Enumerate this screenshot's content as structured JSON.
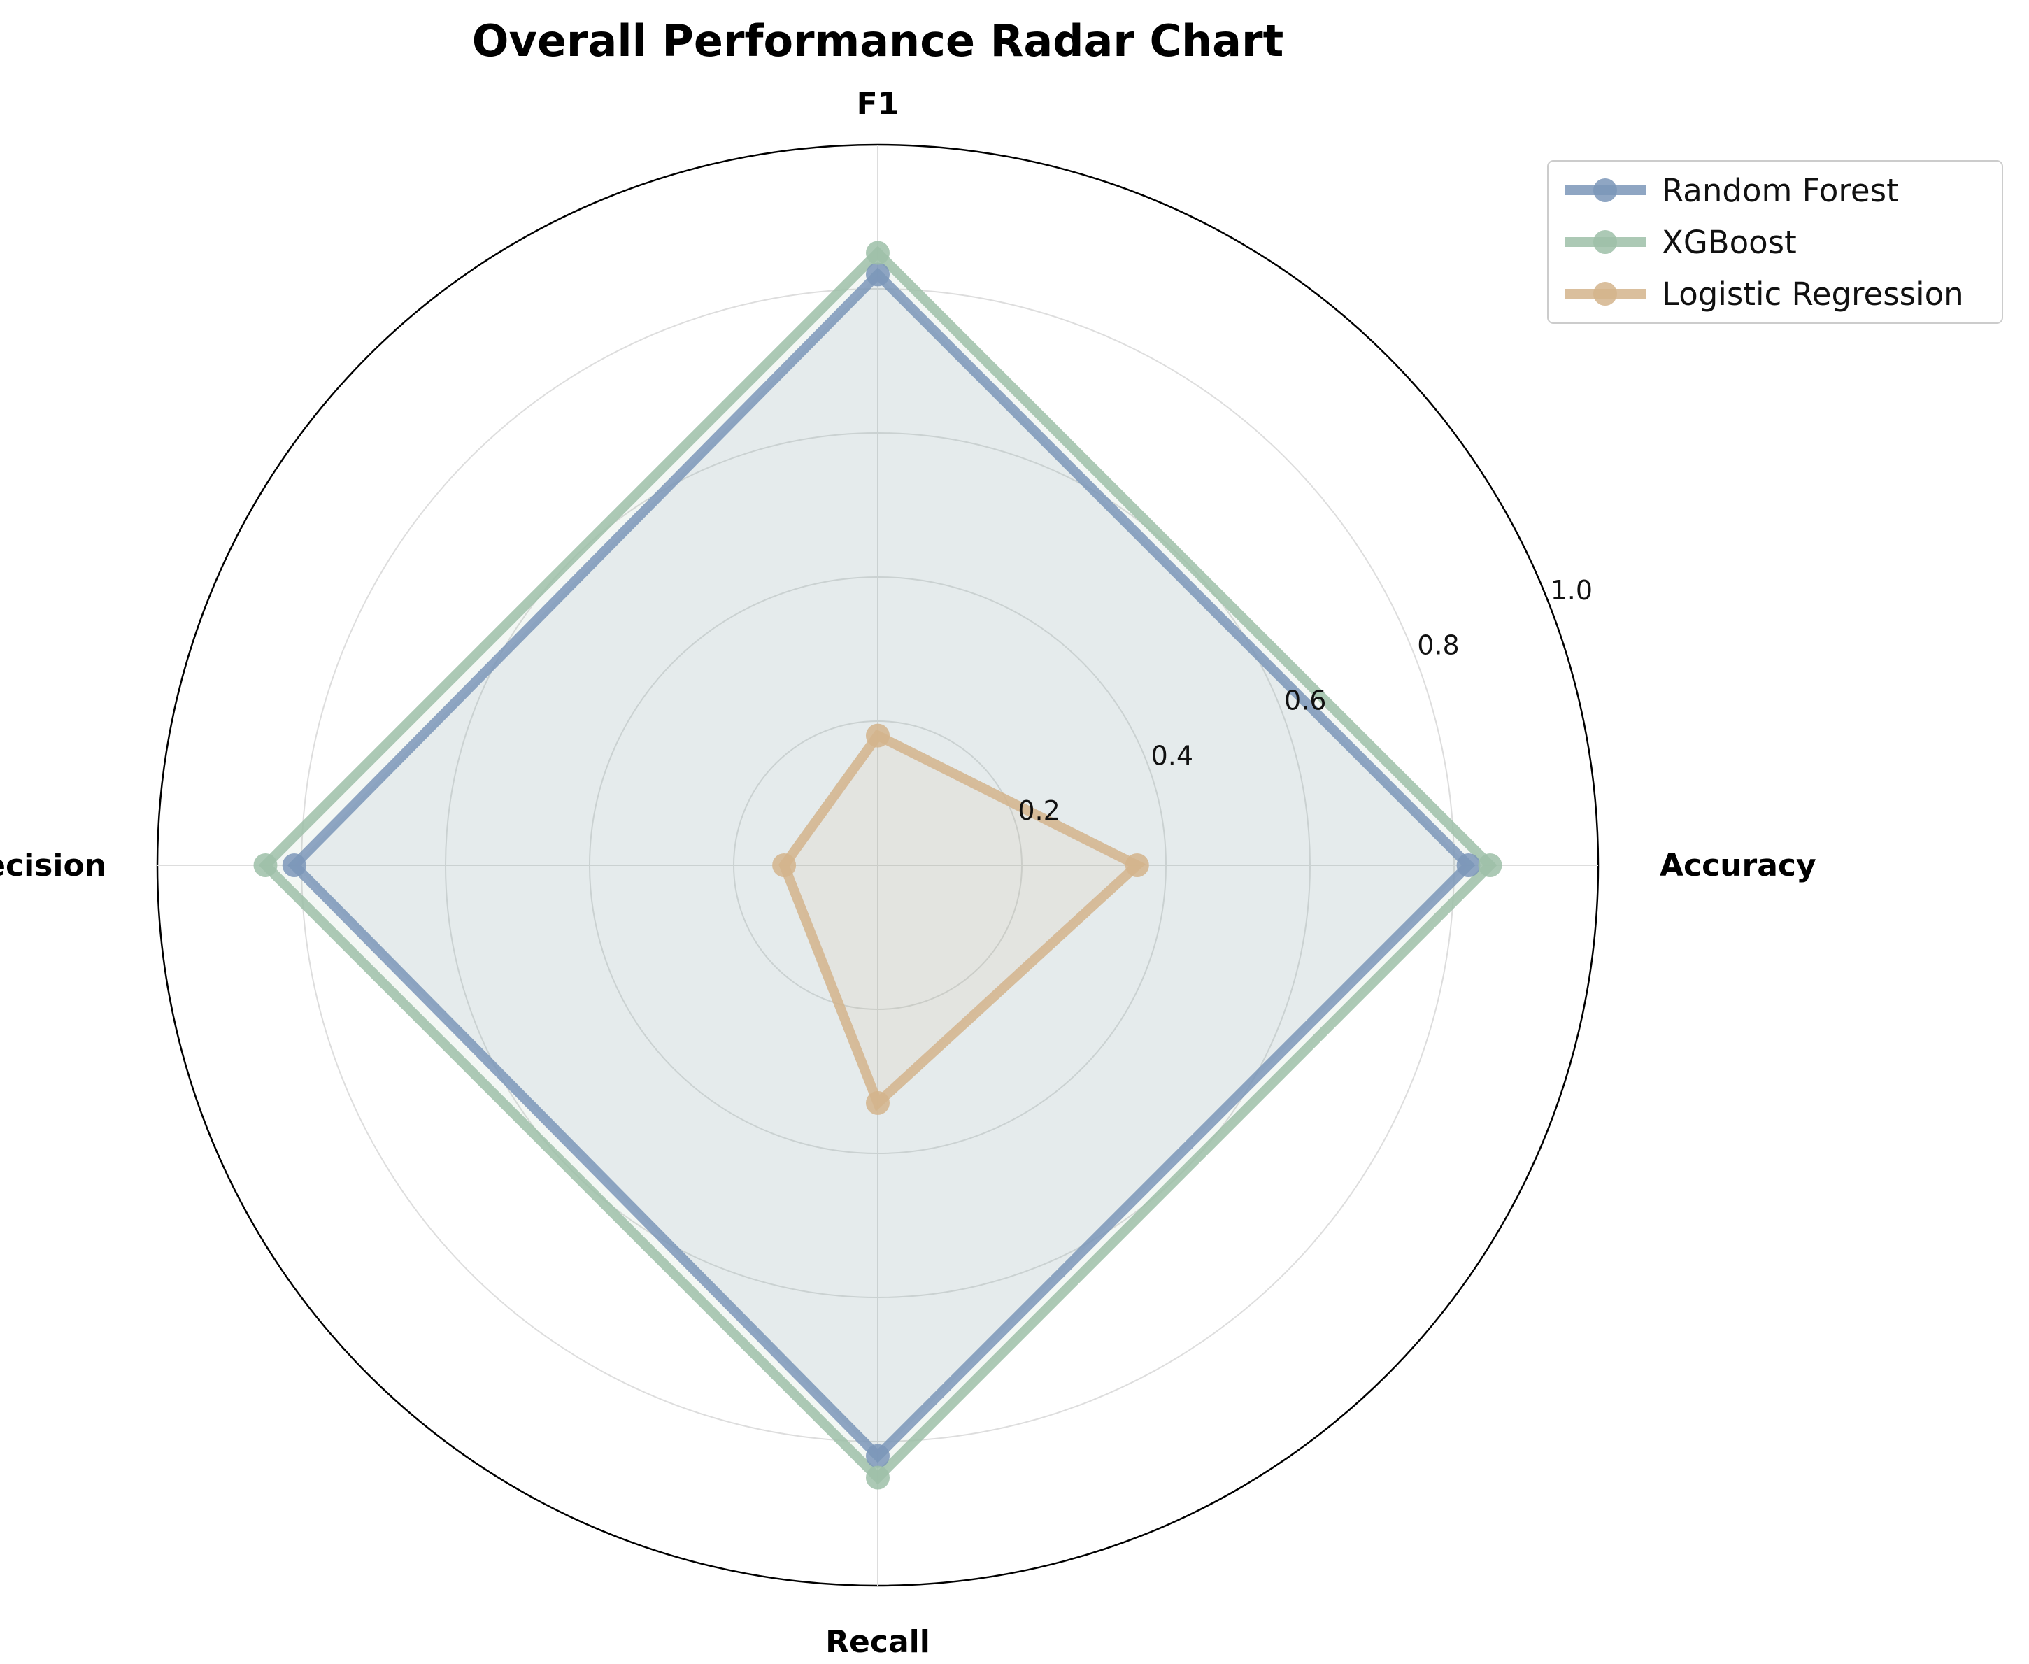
{
  "chart_data": {
    "type": "radar",
    "title": "Overall Performance Radar Chart",
    "axes": [
      "Accuracy",
      "F1",
      "Precision",
      "Recall"
    ],
    "rlim": [
      0,
      1.0
    ],
    "rticks": [
      0.2,
      0.4,
      0.6,
      0.8,
      1.0
    ],
    "rtick_labels": [
      "0.2",
      "0.4",
      "0.6",
      "0.8",
      "1.0"
    ],
    "grid": true,
    "legend_position": "top-right",
    "series": [
      {
        "name": "Random Forest",
        "values": [
          0.82,
          0.82,
          0.81,
          0.82
        ],
        "color": "#7b97b8"
      },
      {
        "name": "XGBoost",
        "values": [
          0.85,
          0.85,
          0.85,
          0.85
        ],
        "color": "#9dbfa8"
      },
      {
        "name": "Logistic Regression",
        "values": [
          0.36,
          0.18,
          0.13,
          0.33
        ],
        "color": "#d4b48c"
      }
    ]
  }
}
